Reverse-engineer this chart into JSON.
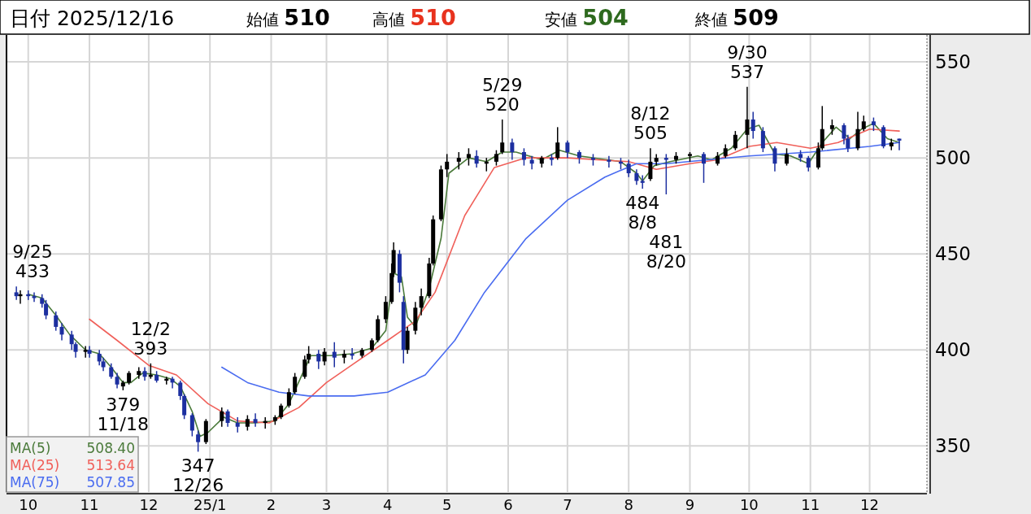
{
  "chart_data": {
    "type": "candlestick",
    "x": [
      "2024-09-25",
      "2024-09-27",
      "2024-10-01",
      "2024-10-04",
      "2024-10-08",
      "2024-10-10",
      "2024-10-15",
      "2024-10-18",
      "2024-10-23",
      "2024-10-25",
      "2024-10-30",
      "2024-11-01",
      "2024-11-06",
      "2024-11-08",
      "2024-11-12",
      "2024-11-15",
      "2024-11-18",
      "2024-11-21",
      "2024-11-26",
      "2024-11-29",
      "2024-12-02",
      "2024-12-05",
      "2024-12-10",
      "2024-12-13",
      "2024-12-17",
      "2024-12-19",
      "2024-12-23",
      "2024-12-26",
      "2024-12-30",
      "2025-01-07",
      "2025-01-10",
      "2025-01-15",
      "2025-01-20",
      "2025-01-24",
      "2025-01-29",
      "2025-02-03",
      "2025-02-06",
      "2025-02-10",
      "2025-02-13",
      "2025-02-18",
      "2025-02-20",
      "2025-02-25",
      "2025-02-28",
      "2025-03-05",
      "2025-03-10",
      "2025-03-14",
      "2025-03-19",
      "2025-03-24",
      "2025-03-27",
      "2025-03-31",
      "2025-04-03",
      "2025-04-04",
      "2025-04-07",
      "2025-04-09",
      "2025-04-11",
      "2025-04-15",
      "2025-04-18",
      "2025-04-22",
      "2025-04-24",
      "2025-04-28",
      "2025-05-01",
      "2025-05-07",
      "2025-05-12",
      "2025-05-16",
      "2025-05-21",
      "2025-05-26",
      "2025-05-29",
      "2025-06-03",
      "2025-06-09",
      "2025-06-13",
      "2025-06-18",
      "2025-06-23",
      "2025-06-26",
      "2025-07-01",
      "2025-07-07",
      "2025-07-14",
      "2025-07-22",
      "2025-07-28",
      "2025-08-01",
      "2025-08-05",
      "2025-08-08",
      "2025-08-12",
      "2025-08-15",
      "2025-08-20",
      "2025-08-25",
      "2025-09-01",
      "2025-09-08",
      "2025-09-15",
      "2025-09-19",
      "2025-09-24",
      "2025-09-30",
      "2025-10-03",
      "2025-10-08",
      "2025-10-14",
      "2025-10-20",
      "2025-10-27",
      "2025-10-31",
      "2025-11-05",
      "2025-11-07",
      "2025-11-12",
      "2025-11-18",
      "2025-11-20",
      "2025-11-25",
      "2025-11-28",
      "2025-12-03",
      "2025-12-08",
      "2025-12-12",
      "2025-12-16"
    ],
    "ohlc": [
      [
        430,
        433,
        426,
        428
      ],
      [
        428,
        431,
        424,
        429
      ],
      [
        429,
        431,
        426,
        428
      ],
      [
        428,
        430,
        425,
        427
      ],
      [
        427,
        429,
        422,
        424
      ],
      [
        424,
        426,
        416,
        418
      ],
      [
        418,
        420,
        410,
        412
      ],
      [
        412,
        414,
        405,
        408
      ],
      [
        408,
        410,
        400,
        403
      ],
      [
        403,
        404,
        396,
        399
      ],
      [
        399,
        402,
        396,
        400
      ],
      [
        400,
        402,
        396,
        398
      ],
      [
        398,
        400,
        392,
        394
      ],
      [
        394,
        396,
        389,
        391
      ],
      [
        391,
        393,
        385,
        386
      ],
      [
        386,
        388,
        380,
        382
      ],
      [
        381,
        384,
        379,
        383
      ],
      [
        383,
        389,
        382,
        388
      ],
      [
        387,
        391,
        385,
        389
      ],
      [
        389,
        391,
        384,
        386
      ],
      [
        386,
        393,
        385,
        387
      ],
      [
        387,
        389,
        383,
        384
      ],
      [
        384,
        386,
        382,
        385
      ],
      [
        385,
        386,
        380,
        383
      ],
      [
        383,
        384,
        374,
        376
      ],
      [
        376,
        377,
        364,
        366
      ],
      [
        366,
        367,
        355,
        358
      ],
      [
        356,
        358,
        347,
        352
      ],
      [
        352,
        364,
        351,
        363
      ],
      [
        363,
        370,
        360,
        368
      ],
      [
        368,
        369,
        360,
        362
      ],
      [
        362,
        365,
        357,
        360
      ],
      [
        360,
        366,
        358,
        364
      ],
      [
        364,
        367,
        360,
        362
      ],
      [
        362,
        365,
        359,
        363
      ],
      [
        363,
        366,
        361,
        365
      ],
      [
        365,
        372,
        364,
        371
      ],
      [
        371,
        380,
        370,
        378
      ],
      [
        378,
        388,
        377,
        386
      ],
      [
        386,
        397,
        385,
        395
      ],
      [
        395,
        402,
        393,
        398
      ],
      [
        398,
        400,
        390,
        394
      ],
      [
        394,
        401,
        392,
        399
      ],
      [
        399,
        404,
        391,
        396
      ],
      [
        396,
        400,
        393,
        398
      ],
      [
        398,
        401,
        395,
        397
      ],
      [
        397,
        401,
        396,
        400
      ],
      [
        400,
        406,
        399,
        405
      ],
      [
        405,
        418,
        404,
        416
      ],
      [
        416,
        428,
        414,
        425
      ],
      [
        425,
        445,
        424,
        440
      ],
      [
        440,
        456,
        438,
        452
      ],
      [
        450,
        452,
        430,
        435
      ],
      [
        425,
        428,
        393,
        400
      ],
      [
        400,
        412,
        398,
        410
      ],
      [
        410,
        425,
        408,
        422
      ],
      [
        422,
        432,
        418,
        428
      ],
      [
        428,
        448,
        427,
        445
      ],
      [
        445,
        470,
        444,
        468
      ],
      [
        468,
        496,
        467,
        494
      ],
      [
        494,
        502,
        490,
        498
      ],
      [
        498,
        503,
        494,
        500
      ],
      [
        500,
        505,
        496,
        502
      ],
      [
        501,
        504,
        495,
        497
      ],
      [
        497,
        500,
        493,
        498
      ],
      [
        498,
        504,
        496,
        502
      ],
      [
        503,
        520,
        502,
        508
      ],
      [
        508,
        510,
        499,
        503
      ],
      [
        503,
        505,
        496,
        499
      ],
      [
        499,
        501,
        494,
        497
      ],
      [
        497,
        501,
        495,
        500
      ],
      [
        500,
        502,
        496,
        499
      ],
      [
        500,
        516,
        499,
        508
      ],
      [
        508,
        509,
        500,
        503
      ],
      [
        503,
        504,
        497,
        500
      ],
      [
        500,
        502,
        496,
        499
      ],
      [
        499,
        501,
        495,
        498
      ],
      [
        498,
        500,
        494,
        497
      ],
      [
        497,
        499,
        490,
        492
      ],
      [
        492,
        494,
        486,
        488
      ],
      [
        488,
        491,
        484,
        487
      ],
      [
        489,
        505,
        488,
        498
      ],
      [
        498,
        502,
        496,
        500
      ],
      [
        500,
        502,
        481,
        499
      ],
      [
        499,
        503,
        497,
        501
      ],
      [
        501,
        503,
        498,
        502
      ],
      [
        502,
        503,
        487,
        497
      ],
      [
        497,
        503,
        496,
        501
      ],
      [
        501,
        507,
        500,
        505
      ],
      [
        505,
        514,
        504,
        512
      ],
      [
        512,
        537,
        505,
        520
      ],
      [
        520,
        524,
        510,
        514
      ],
      [
        514,
        516,
        503,
        505
      ],
      [
        505,
        506,
        493,
        497
      ],
      [
        497,
        505,
        496,
        502
      ],
      [
        502,
        504,
        498,
        500
      ],
      [
        500,
        501,
        493,
        495
      ],
      [
        495,
        508,
        494,
        505
      ],
      [
        505,
        527,
        504,
        515
      ],
      [
        515,
        520,
        512,
        517
      ],
      [
        517,
        518,
        507,
        510
      ],
      [
        510,
        512,
        503,
        505
      ],
      [
        505,
        524,
        504,
        515
      ],
      [
        515,
        522,
        514,
        519
      ],
      [
        519,
        521,
        514,
        517
      ],
      [
        516,
        517,
        505,
        506
      ],
      [
        506,
        510,
        504,
        508
      ],
      [
        510,
        510,
        504,
        509
      ]
    ],
    "colors": [
      "#1c2fa0",
      "#000000",
      "#1c2fa0",
      "#1c2fa0",
      "#1c2fa0",
      "#1c2fa0",
      "#1c2fa0",
      "#1c2fa0",
      "#1c2fa0",
      "#1c2fa0",
      "#000000",
      "#1c2fa0",
      "#1c2fa0",
      "#1c2fa0",
      "#1c2fa0",
      "#1c2fa0",
      "#000000",
      "#000000",
      "#000000",
      "#1c2fa0",
      "#000000",
      "#1c2fa0",
      "#000000",
      "#1c2fa0",
      "#1c2fa0",
      "#1c2fa0",
      "#1c2fa0",
      "#1c2fa0",
      "#000000",
      "#000000",
      "#1c2fa0",
      "#1c2fa0",
      "#000000",
      "#1c2fa0",
      "#000000",
      "#000000",
      "#000000",
      "#000000",
      "#000000",
      "#000000",
      "#000000",
      "#1c2fa0",
      "#000000",
      "#1c2fa0",
      "#000000",
      "#1c2fa0",
      "#000000",
      "#000000",
      "#000000",
      "#000000",
      "#000000",
      "#000000",
      "#1c2fa0",
      "#1c2fa0",
      "#000000",
      "#000000",
      "#000000",
      "#000000",
      "#000000",
      "#000000",
      "#000000",
      "#000000",
      "#000000",
      "#1c2fa0",
      "#000000",
      "#000000",
      "#000000",
      "#1c2fa0",
      "#1c2fa0",
      "#1c2fa0",
      "#000000",
      "#1c2fa0",
      "#000000",
      "#1c2fa0",
      "#1c2fa0",
      "#1c2fa0",
      "#1c2fa0",
      "#1c2fa0",
      "#1c2fa0",
      "#1c2fa0",
      "#1c2fa0",
      "#000000",
      "#000000",
      "#1c2fa0",
      "#000000",
      "#000000",
      "#1c2fa0",
      "#000000",
      "#000000",
      "#000000",
      "#000000",
      "#1c2fa0",
      "#1c2fa0",
      "#1c2fa0",
      "#000000",
      "#1c2fa0",
      "#1c2fa0",
      "#000000",
      "#000000",
      "#000000",
      "#1c2fa0",
      "#1c2fa0",
      "#000000",
      "#000000",
      "#1c2fa0",
      "#1c2fa0",
      "#000000",
      "#1c2fa0"
    ],
    "series": [
      {
        "name": "MA(5)",
        "type": "line",
        "color": "#4a7a3a",
        "x": [
          "2024-10-01",
          "2024-10-08",
          "2024-10-15",
          "2024-10-22",
          "2024-10-30",
          "2024-11-06",
          "2024-11-12",
          "2024-11-18",
          "2024-11-22",
          "2024-11-28",
          "2024-12-05",
          "2024-12-12",
          "2024-12-17",
          "2024-12-23",
          "2024-12-27",
          "2024-12-31",
          "2025-01-08",
          "2025-01-15",
          "2025-01-24",
          "2025-02-03",
          "2025-02-10",
          "2025-02-17",
          "2025-02-21",
          "2025-03-03",
          "2025-03-14",
          "2025-03-24",
          "2025-03-31",
          "2025-04-04",
          "2025-04-08",
          "2025-04-11",
          "2025-04-15",
          "2025-04-22",
          "2025-04-28",
          "2025-05-02",
          "2025-05-12",
          "2025-05-21",
          "2025-05-29",
          "2025-06-05",
          "2025-06-18",
          "2025-06-27",
          "2025-07-07",
          "2025-07-28",
          "2025-08-05",
          "2025-08-08",
          "2025-08-14",
          "2025-08-22",
          "2025-09-05",
          "2025-09-12",
          "2025-09-22",
          "2025-09-30",
          "2025-10-06",
          "2025-10-14",
          "2025-10-22",
          "2025-10-31",
          "2025-11-07",
          "2025-11-14",
          "2025-11-21",
          "2025-11-27",
          "2025-12-03",
          "2025-12-10",
          "2025-12-16"
        ],
        "values": [
          429,
          427,
          418,
          408,
          400,
          398,
          391,
          383,
          383,
          388,
          387,
          385,
          381,
          368,
          355,
          357,
          365,
          362,
          362,
          363,
          372,
          388,
          397,
          397,
          398,
          401,
          410,
          440,
          438,
          417,
          412,
          432,
          458,
          492,
          500,
          498,
          503,
          503,
          499,
          504,
          501,
          498,
          492,
          488,
          496,
          498,
          501,
          499,
          505,
          515,
          517,
          502,
          501,
          497,
          508,
          516,
          510,
          515,
          518,
          510,
          508
        ]
      },
      {
        "name": "MA(25)",
        "type": "line",
        "color": "#f0605a",
        "x": [
          "2024-11-01",
          "2024-11-15",
          "2024-12-01",
          "2024-12-15",
          "2024-12-31",
          "2025-01-15",
          "2025-01-31",
          "2025-02-15",
          "2025-03-01",
          "2025-03-15",
          "2025-04-01",
          "2025-04-15",
          "2025-04-25",
          "2025-05-10",
          "2025-05-25",
          "2025-06-10",
          "2025-07-01",
          "2025-08-01",
          "2025-08-15",
          "2025-09-01",
          "2025-09-15",
          "2025-10-01",
          "2025-10-15",
          "2025-11-01",
          "2025-11-15",
          "2025-12-01",
          "2025-12-16"
        ],
        "values": [
          416,
          405,
          392,
          387,
          372,
          363,
          362,
          370,
          383,
          393,
          405,
          415,
          430,
          470,
          495,
          500,
          500,
          498,
          494,
          497,
          499,
          506,
          508,
          505,
          508,
          515,
          514
        ]
      },
      {
        "name": "MA(75)",
        "type": "line",
        "color": "#4a6cf0",
        "x": [
          "2025-01-07",
          "2025-01-20",
          "2025-02-05",
          "2025-02-20",
          "2025-03-15",
          "2025-04-01",
          "2025-04-20",
          "2025-05-05",
          "2025-05-20",
          "2025-06-10",
          "2025-07-01",
          "2025-07-20",
          "2025-08-05",
          "2025-08-20",
          "2025-09-10",
          "2025-10-01",
          "2025-11-01",
          "2025-12-01",
          "2025-12-16"
        ],
        "values": [
          391,
          383,
          378,
          376,
          376,
          378,
          387,
          405,
          430,
          458,
          478,
          490,
          497,
          497,
          499,
          501,
          503,
          506,
          508
        ]
      }
    ],
    "xlim": [
      "2024-09-20",
      "2025-12-30"
    ],
    "xticks": [
      {
        "value": "2024-10-01",
        "label": "10"
      },
      {
        "value": "2024-11-01",
        "label": "11"
      },
      {
        "value": "2024-12-01",
        "label": "12"
      },
      {
        "value": "2025-01-01",
        "label": "25/1"
      },
      {
        "value": "2025-02-01",
        "label": "2"
      },
      {
        "value": "2025-03-01",
        "label": "3"
      },
      {
        "value": "2025-04-01",
        "label": "4"
      },
      {
        "value": "2025-05-01",
        "label": "5"
      },
      {
        "value": "2025-06-01",
        "label": "6"
      },
      {
        "value": "2025-07-01",
        "label": "7"
      },
      {
        "value": "2025-08-01",
        "label": "8"
      },
      {
        "value": "2025-09-01",
        "label": "9"
      },
      {
        "value": "2025-10-01",
        "label": "10"
      },
      {
        "value": "2025-11-01",
        "label": "11"
      },
      {
        "value": "2025-12-01",
        "label": "12"
      }
    ],
    "ylim": [
      326,
      564
    ],
    "yticks": [
      350,
      400,
      450,
      500,
      550
    ],
    "grid": true,
    "legend": "bottom left",
    "annotations": [
      "日付 2025/12/16",
      "始値 **510**",
      "高値 **510**",
      "安値 **504**",
      "終値 **509**",
      "508.40",
      "513.64",
      "507.85",
      {
        "text": "9/25 433",
        "x": "2024-09-25",
        "y": 433
      },
      {
        "text": "379 11/18",
        "x": "2024-11-18",
        "y": 379
      },
      {
        "text": "12/2 393",
        "x": "2024-12-02",
        "y": 393
      },
      {
        "text": "347 12/26",
        "x": "2024-12-26",
        "y": 347
      },
      {
        "text": "5/29 520",
        "x": "2025-05-29",
        "y": 520
      },
      {
        "text": "484 8/8",
        "x": "2025-08-08",
        "y": 484
      },
      {
        "text": "8/12 505",
        "x": "2025-08-12",
        "y": 505
      },
      {
        "text": "481 8/20",
        "x": "2025-08-20",
        "y": 481
      },
      {
        "text": "9/30 537",
        "x": "2025-09-30",
        "y": 537
      }
    ]
  }
}
